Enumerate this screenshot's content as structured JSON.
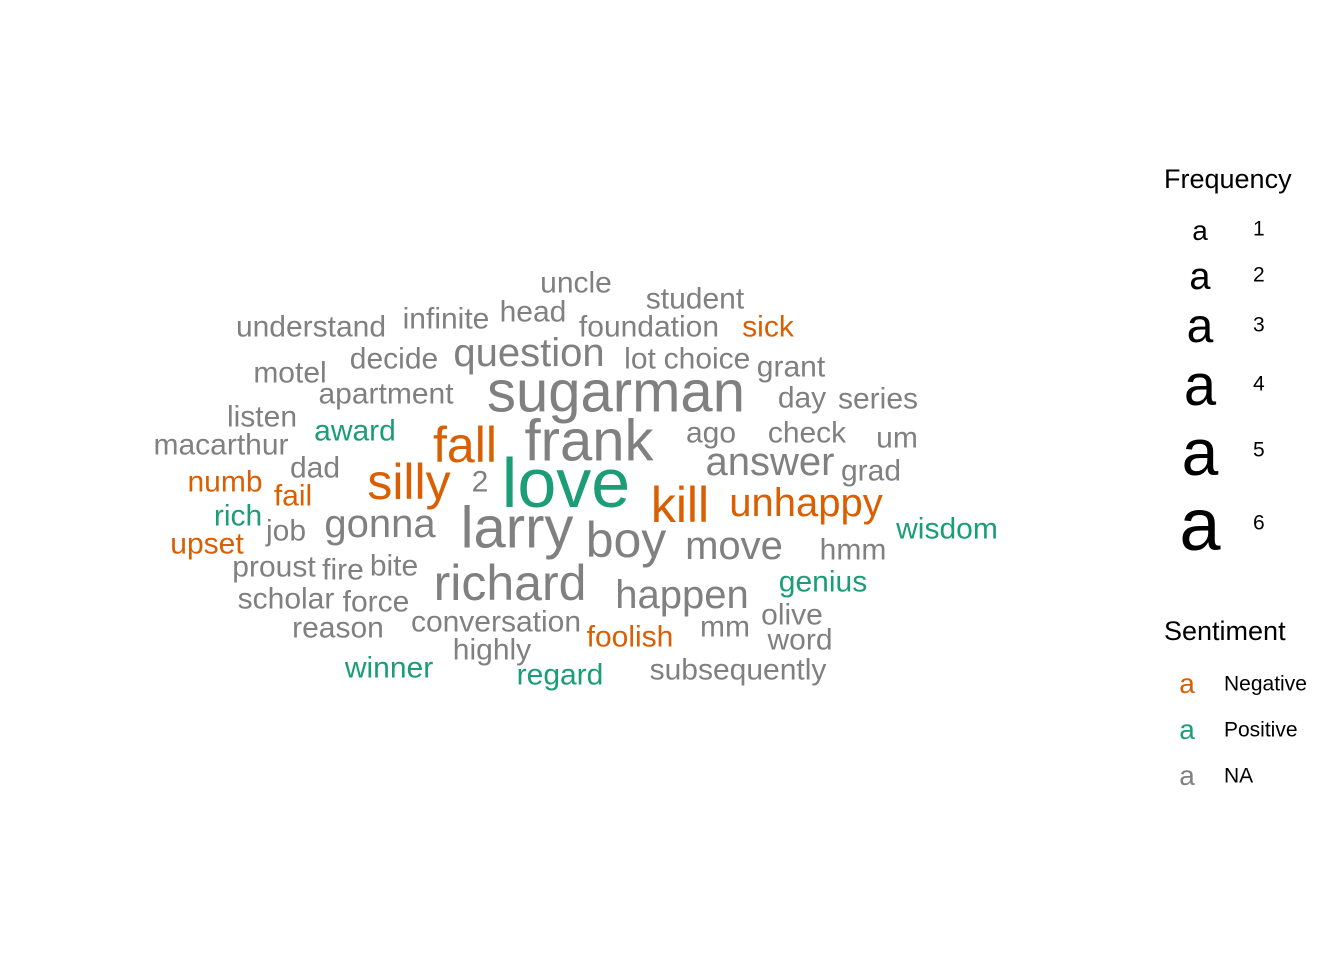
{
  "chart_data": {
    "type": "wordcloud",
    "colors": {
      "Negative": "#D95F02",
      "Positive": "#1B9E77",
      "NA": "#808080"
    },
    "words": [
      {
        "word": "love",
        "freq": 6,
        "sentiment": "Positive"
      },
      {
        "word": "sugarman",
        "freq": 5,
        "sentiment": "NA"
      },
      {
        "word": "frank",
        "freq": 5,
        "sentiment": "NA"
      },
      {
        "word": "larry",
        "freq": 5,
        "sentiment": "NA"
      },
      {
        "word": "richard",
        "freq": 4,
        "sentiment": "NA"
      },
      {
        "word": "boy",
        "freq": 4,
        "sentiment": "NA"
      },
      {
        "word": "fall",
        "freq": 4,
        "sentiment": "Negative"
      },
      {
        "word": "silly",
        "freq": 4,
        "sentiment": "Negative"
      },
      {
        "word": "kill",
        "freq": 4,
        "sentiment": "Negative"
      },
      {
        "word": "question",
        "freq": 3,
        "sentiment": "NA"
      },
      {
        "word": "answer",
        "freq": 3,
        "sentiment": "NA"
      },
      {
        "word": "gonna",
        "freq": 3,
        "sentiment": "NA"
      },
      {
        "word": "move",
        "freq": 3,
        "sentiment": "NA"
      },
      {
        "word": "happen",
        "freq": 3,
        "sentiment": "NA"
      },
      {
        "word": "unhappy",
        "freq": 3,
        "sentiment": "Negative"
      },
      {
        "word": "uncle",
        "freq": 2,
        "sentiment": "NA"
      },
      {
        "word": "student",
        "freq": 2,
        "sentiment": "NA"
      },
      {
        "word": "head",
        "freq": 2,
        "sentiment": "NA"
      },
      {
        "word": "understand",
        "freq": 2,
        "sentiment": "NA"
      },
      {
        "word": "infinite",
        "freq": 2,
        "sentiment": "NA"
      },
      {
        "word": "foundation",
        "freq": 2,
        "sentiment": "NA"
      },
      {
        "word": "sick",
        "freq": 2,
        "sentiment": "Negative"
      },
      {
        "word": "decide",
        "freq": 2,
        "sentiment": "NA"
      },
      {
        "word": "lot",
        "freq": 2,
        "sentiment": "NA"
      },
      {
        "word": "choice",
        "freq": 2,
        "sentiment": "NA"
      },
      {
        "word": "motel",
        "freq": 2,
        "sentiment": "NA"
      },
      {
        "word": "grant",
        "freq": 2,
        "sentiment": "NA"
      },
      {
        "word": "apartment",
        "freq": 2,
        "sentiment": "NA"
      },
      {
        "word": "day",
        "freq": 2,
        "sentiment": "NA"
      },
      {
        "word": "series",
        "freq": 2,
        "sentiment": "NA"
      },
      {
        "word": "listen",
        "freq": 2,
        "sentiment": "NA"
      },
      {
        "word": "award",
        "freq": 2,
        "sentiment": "Positive"
      },
      {
        "word": "ago",
        "freq": 2,
        "sentiment": "NA"
      },
      {
        "word": "check",
        "freq": 2,
        "sentiment": "NA"
      },
      {
        "word": "um",
        "freq": 2,
        "sentiment": "NA"
      },
      {
        "word": "macarthur",
        "freq": 2,
        "sentiment": "NA"
      },
      {
        "word": "dad",
        "freq": 2,
        "sentiment": "NA"
      },
      {
        "word": "grad",
        "freq": 2,
        "sentiment": "NA"
      },
      {
        "word": "numb",
        "freq": 2,
        "sentiment": "Negative"
      },
      {
        "word": "2",
        "freq": 2,
        "sentiment": "NA"
      },
      {
        "word": "fail",
        "freq": 2,
        "sentiment": "Negative"
      },
      {
        "word": "rich",
        "freq": 2,
        "sentiment": "Positive"
      },
      {
        "word": "wisdom",
        "freq": 2,
        "sentiment": "Positive"
      },
      {
        "word": "job",
        "freq": 2,
        "sentiment": "NA"
      },
      {
        "word": "upset",
        "freq": 2,
        "sentiment": "Negative"
      },
      {
        "word": "hmm",
        "freq": 2,
        "sentiment": "NA"
      },
      {
        "word": "proust",
        "freq": 2,
        "sentiment": "NA"
      },
      {
        "word": "fire",
        "freq": 2,
        "sentiment": "NA"
      },
      {
        "word": "bite",
        "freq": 2,
        "sentiment": "NA"
      },
      {
        "word": "genius",
        "freq": 2,
        "sentiment": "Positive"
      },
      {
        "word": "scholar",
        "freq": 2,
        "sentiment": "NA"
      },
      {
        "word": "force",
        "freq": 2,
        "sentiment": "NA"
      },
      {
        "word": "olive",
        "freq": 2,
        "sentiment": "NA"
      },
      {
        "word": "reason",
        "freq": 2,
        "sentiment": "NA"
      },
      {
        "word": "conversation",
        "freq": 2,
        "sentiment": "NA"
      },
      {
        "word": "mm",
        "freq": 2,
        "sentiment": "NA"
      },
      {
        "word": "foolish",
        "freq": 2,
        "sentiment": "Negative"
      },
      {
        "word": "word",
        "freq": 2,
        "sentiment": "NA"
      },
      {
        "word": "highly",
        "freq": 2,
        "sentiment": "NA"
      },
      {
        "word": "winner",
        "freq": 2,
        "sentiment": "Positive"
      },
      {
        "word": "regard",
        "freq": 2,
        "sentiment": "Positive"
      },
      {
        "word": "subsequently",
        "freq": 2,
        "sentiment": "NA"
      }
    ],
    "legend": {
      "frequency_title": "Frequency",
      "frequency_glyph": "a",
      "frequency_levels": [
        "1",
        "2",
        "3",
        "4",
        "5",
        "6"
      ],
      "sentiment_title": "Sentiment",
      "sentiment_glyph": "a",
      "sentiment_levels": [
        {
          "label": "Negative",
          "key": "Negative"
        },
        {
          "label": "Positive",
          "key": "Positive"
        },
        {
          "label": "NA",
          "key": "NA"
        }
      ]
    }
  }
}
